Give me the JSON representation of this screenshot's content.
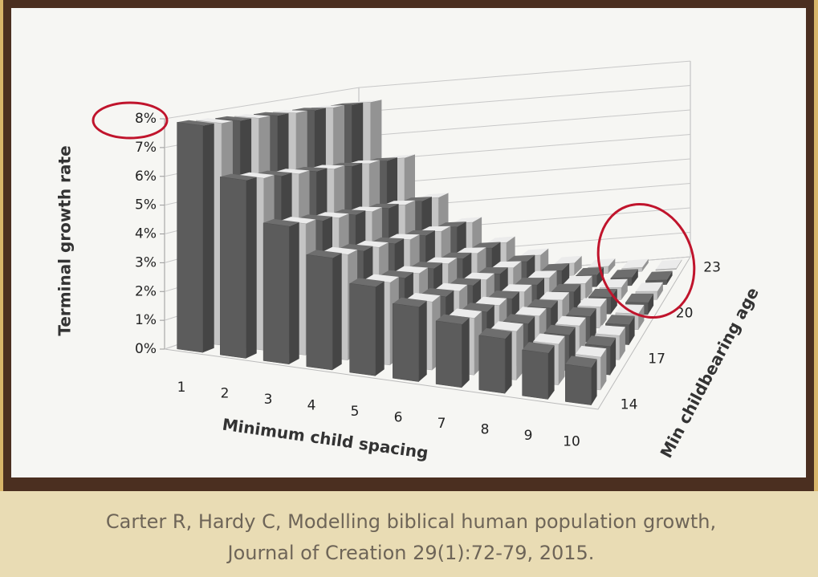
{
  "chart_data": {
    "type": "bar3d",
    "ylabel": "Terminal growth rate",
    "xlabel": "Minimum child spacing",
    "zlabel": "Min childbearing age",
    "categories": [
      "1",
      "2",
      "3",
      "4",
      "5",
      "6",
      "7",
      "8",
      "9",
      "10"
    ],
    "ylim": [
      0,
      8
    ],
    "yticks": [
      {
        "value": 0,
        "label": "0%"
      },
      {
        "value": 1,
        "label": "1%"
      },
      {
        "value": 2,
        "label": "2%"
      },
      {
        "value": 3,
        "label": "3%"
      },
      {
        "value": 4,
        "label": "4%"
      },
      {
        "value": 5,
        "label": "5%"
      },
      {
        "value": 6,
        "label": "6%"
      },
      {
        "value": 7,
        "label": "7%"
      },
      {
        "value": 8,
        "label": "8%"
      }
    ],
    "grid": true,
    "series": [
      {
        "name": "14",
        "color": "#5c5c5c",
        "values": [
          7.9,
          6.2,
          4.8,
          3.9,
          3.1,
          2.6,
          2.2,
          1.9,
          1.6,
          1.3
        ]
      },
      {
        "name": null,
        "color": "#c4c4c4",
        "values": [
          7.85,
          6.08,
          4.65,
          3.73,
          2.92,
          2.41,
          2.01,
          1.72,
          1.44,
          1.16
        ]
      },
      {
        "name": null,
        "color": "#5c5c5c",
        "values": [
          7.8,
          5.96,
          4.5,
          3.56,
          2.74,
          2.22,
          1.82,
          1.54,
          1.28,
          1.02
        ]
      },
      {
        "name": "17",
        "color": "#c4c4c4",
        "values": [
          7.75,
          5.84,
          4.35,
          3.39,
          2.56,
          2.03,
          1.63,
          1.36,
          1.12,
          0.88
        ]
      },
      {
        "name": null,
        "color": "#5c5c5c",
        "values": [
          7.7,
          5.72,
          4.2,
          3.22,
          2.38,
          1.84,
          1.44,
          1.18,
          0.96,
          0.74
        ]
      },
      {
        "name": null,
        "color": "#c4c4c4",
        "values": [
          7.65,
          5.6,
          4.05,
          3.05,
          2.2,
          1.65,
          1.25,
          1.0,
          0.8,
          0.6
        ]
      },
      {
        "name": "20",
        "color": "#5c5c5c",
        "values": [
          7.6,
          5.48,
          3.9,
          2.88,
          2.02,
          1.46,
          1.06,
          0.82,
          0.64,
          0.46
        ]
      },
      {
        "name": null,
        "color": "#c4c4c4",
        "values": [
          7.55,
          5.36,
          3.75,
          2.71,
          1.84,
          1.27,
          0.87,
          0.64,
          0.48,
          0.32
        ]
      },
      {
        "name": null,
        "color": "#5c5c5c",
        "values": [
          7.5,
          5.24,
          3.6,
          2.54,
          1.66,
          1.08,
          0.68,
          0.46,
          0.32,
          0.18
        ]
      },
      {
        "name": "23",
        "color": "#c4c4c4",
        "values": [
          7.45,
          5.12,
          3.45,
          2.37,
          1.48,
          0.89,
          0.49,
          0.28,
          0.16,
          0.04
        ]
      }
    ]
  },
  "caption": {
    "line1": "Carter R, Hardy C, Modelling biblical human population growth,",
    "line2": "Journal of Creation 29(1):72-79, 2015."
  }
}
